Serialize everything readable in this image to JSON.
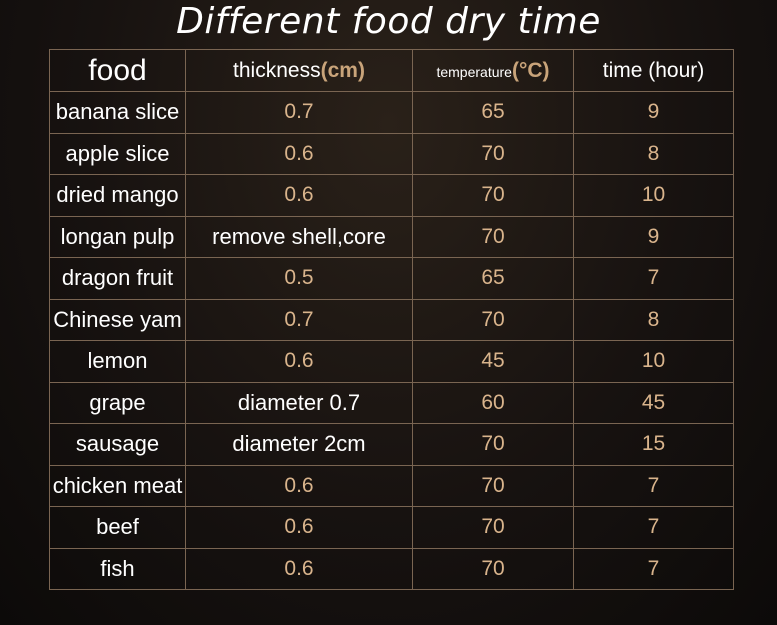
{
  "title": "Different food dry time",
  "headers": {
    "food": "food",
    "thickness": "thickness",
    "thickness_unit": "(cm)",
    "temperature": "temperature",
    "temperature_unit": "(°C)",
    "time": "time (hour)"
  },
  "rows": [
    {
      "food": "banana slice",
      "thickness": "0.7",
      "temperature": "65",
      "time": "9"
    },
    {
      "food": "apple slice",
      "thickness": "0.6",
      "temperature": "70",
      "time": "8"
    },
    {
      "food": "dried mango",
      "thickness": "0.6",
      "temperature": "70",
      "time": "10"
    },
    {
      "food": "longan pulp",
      "thickness": "remove shell,core",
      "temperature": "70",
      "time": "9"
    },
    {
      "food": "dragon fruit",
      "thickness": "0.5",
      "temperature": "65",
      "time": "7"
    },
    {
      "food": "Chinese yam",
      "thickness": "0.7",
      "temperature": "70",
      "time": "8"
    },
    {
      "food": "lemon",
      "thickness": "0.6",
      "temperature": "45",
      "time": "10"
    },
    {
      "food": "grape",
      "thickness": "diameter 0.7",
      "temperature": "60",
      "time": "45"
    },
    {
      "food": "sausage",
      "thickness": "diameter 2cm",
      "temperature": "70",
      "time": "15"
    },
    {
      "food": "chicken meat",
      "thickness": "0.6",
      "temperature": "70",
      "time": "7"
    },
    {
      "food": "beef",
      "thickness": "0.6",
      "temperature": "70",
      "time": "7"
    },
    {
      "food": "fish",
      "thickness": "0.6",
      "temperature": "70",
      "time": "7"
    }
  ]
}
